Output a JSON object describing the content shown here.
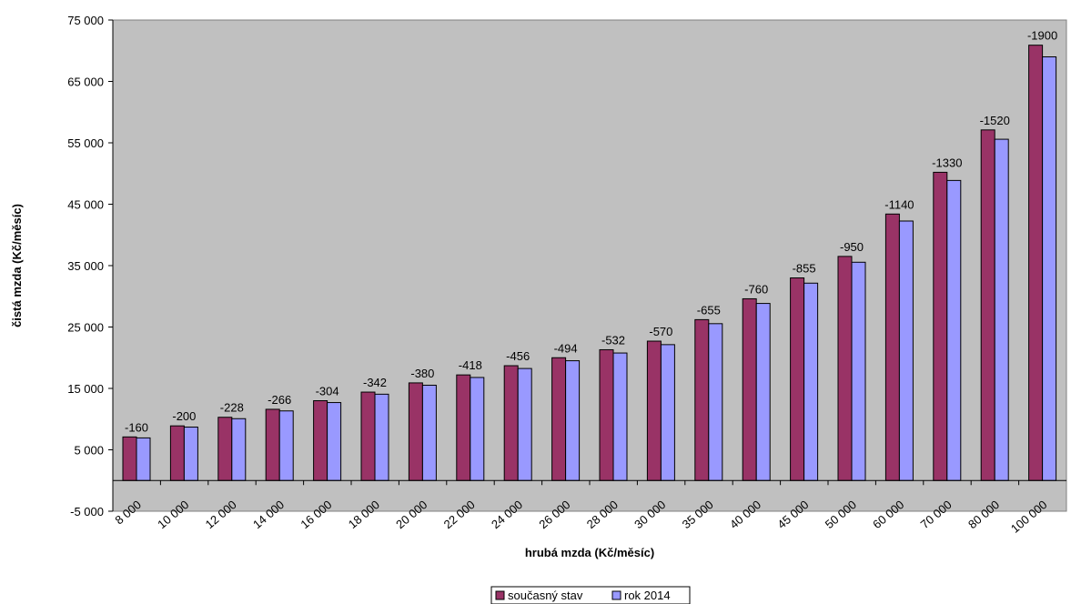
{
  "chart_data": {
    "type": "bar",
    "categories": [
      "8 000",
      "10 000",
      "12 000",
      "14 000",
      "16 000",
      "18 000",
      "20 000",
      "22 000",
      "24 000",
      "26 000",
      "28 000",
      "30 000",
      "35 000",
      "40 000",
      "45 000",
      "50 000",
      "60 000",
      "70 000",
      "80 000",
      "100 000"
    ],
    "series": [
      {
        "name": "současný stav",
        "color": "#993366",
        "values": [
          7100,
          8900,
          10300,
          11600,
          13000,
          14400,
          15900,
          17200,
          18700,
          20000,
          21300,
          22700,
          26200,
          29600,
          33000,
          36500,
          43400,
          50200,
          57100,
          70900
        ]
      },
      {
        "name": "rok 2014",
        "color": "#9999ff",
        "values": [
          6940,
          8700,
          10072,
          11334,
          12696,
          14058,
          15520,
          16782,
          18244,
          19506,
          20768,
          22130,
          25545,
          28840,
          32145,
          35550,
          42260,
          48870,
          55580,
          69000
        ]
      }
    ],
    "data_labels": [
      "-160",
      "-200",
      "-228",
      "-266",
      "-304",
      "-342",
      "-380",
      "-418",
      "-456",
      "-494",
      "-532",
      "-570",
      "-655",
      "-760",
      "-855",
      "-950",
      "-1140",
      "-1330",
      "-1520",
      "-1900"
    ],
    "ylim": [
      -5000,
      75000
    ],
    "y_ticks": [
      -5000,
      5000,
      15000,
      25000,
      35000,
      45000,
      55000,
      65000,
      75000
    ],
    "y_tick_labels": [
      "-5 000",
      "5 000",
      "15 000",
      "25 000",
      "35 000",
      "45 000",
      "55 000",
      "65 000",
      "75 000"
    ],
    "xlabel": "hrubá mzda (Kč/měsíc)",
    "ylabel": "čistá mzda (Kč/měsíc)",
    "title": "",
    "plot_background": "#c0c0c0",
    "grid": false,
    "legend_position": "bottom-center"
  }
}
